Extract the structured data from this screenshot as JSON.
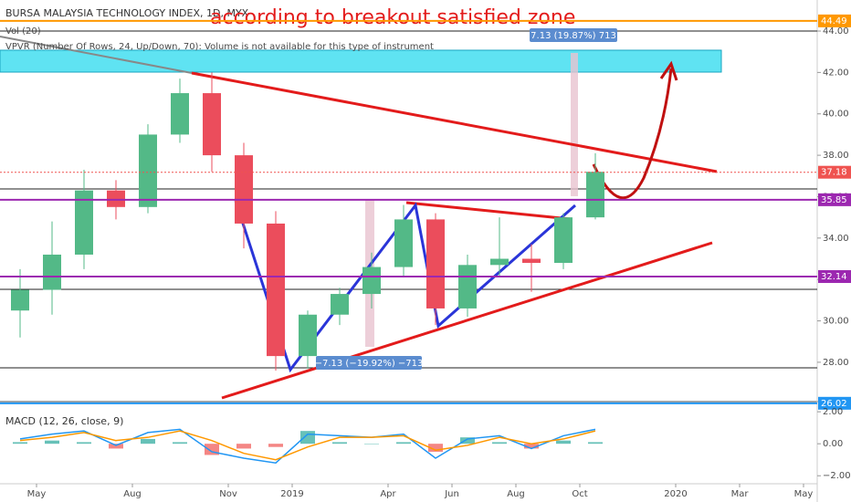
{
  "chart_data": [
    {
      "type": "candlestick",
      "title": "BURSA MALAYSIA TECHNOLOGY INDEX, 1D, MYX",
      "annotation": "according to breakout satisfied zone",
      "indicators": [
        "Vol (20)",
        "VPVR (Number Of Rows, 24, Up/Down, 70): Volume is not available for this type of instrument"
      ],
      "measures": [
        "7.13 (19.87%) 713",
        "−7.13 (−19.92%) −713"
      ],
      "x": [
        "2018-04",
        "2018-05",
        "2018-06",
        "2018-07",
        "2018-08",
        "2018-09",
        "2018-10",
        "2018-11",
        "2018-12",
        "2019-01",
        "2019-02",
        "2019-03",
        "2019-04",
        "2019-05",
        "2019-06",
        "2019-07",
        "2019-08",
        "2019-09",
        "2019-10"
      ],
      "open": [
        30.5,
        31.5,
        33.2,
        36.3,
        35.5,
        39.0,
        41.0,
        38.0,
        34.7,
        28.3,
        30.3,
        31.3,
        32.6,
        34.9,
        30.6,
        32.7,
        33.0,
        32.8,
        35.0
      ],
      "high": [
        32.5,
        34.8,
        37.3,
        36.8,
        39.5,
        41.7,
        42.0,
        38.6,
        35.3,
        30.5,
        31.6,
        33.3,
        35.6,
        35.2,
        33.2,
        35.0,
        33.7,
        35.2,
        38.1
      ],
      "low": [
        29.2,
        30.3,
        32.5,
        34.9,
        35.2,
        38.6,
        37.2,
        33.5,
        27.6,
        27.7,
        29.8,
        30.6,
        32.1,
        29.8,
        30.2,
        32.1,
        31.4,
        32.5,
        34.9
      ],
      "close": [
        31.5,
        33.2,
        36.3,
        35.5,
        39.0,
        41.0,
        38.0,
        34.7,
        28.3,
        30.3,
        31.3,
        32.6,
        34.9,
        30.6,
        32.7,
        33.0,
        32.8,
        35.0,
        37.2
      ],
      "up_color": "#53b987",
      "down_color": "#eb4d5c",
      "ylim": [
        26.1,
        45.5
      ],
      "yticks": [
        {
          "value": 28,
          "label": "28.00"
        },
        {
          "value": 30,
          "label": "30.00"
        },
        {
          "value": 32,
          "label": "32.00"
        },
        {
          "value": 34,
          "label": "34.00"
        },
        {
          "value": 36,
          "label": "36.00"
        },
        {
          "value": 38,
          "label": "38.00"
        },
        {
          "value": 40,
          "label": "40.00"
        },
        {
          "value": 42,
          "label": "42.00"
        },
        {
          "value": 44,
          "label": "44.00"
        }
      ],
      "xticks": [
        {
          "value": "2018-05",
          "label": "May"
        },
        {
          "value": "2018-08",
          "label": "Aug"
        },
        {
          "value": "2018-11",
          "label": "Nov"
        },
        {
          "value": "2019-01",
          "label": "2019"
        },
        {
          "value": "2019-04",
          "label": "Apr"
        },
        {
          "value": "2019-06",
          "label": "Jun"
        },
        {
          "value": "2019-08",
          "label": "Aug"
        },
        {
          "value": "2019-10",
          "label": "Oct"
        },
        {
          "value": "2020-01",
          "label": "2020"
        },
        {
          "value": "2020-03",
          "label": "Mar"
        },
        {
          "value": "2020-05",
          "label": "May"
        }
      ],
      "levels": [
        {
          "value": 44.49,
          "color": "#ff9800"
        },
        {
          "value": 37.18,
          "color": "#ef5350",
          "dashed": true
        },
        {
          "value": 35.85,
          "color": "#9c27b0"
        },
        {
          "value": 32.14,
          "color": "#9c27b0"
        },
        {
          "value": 26.02,
          "color": "#2196f3"
        }
      ]
    },
    {
      "type": "macd",
      "title": "MACD (12, 26, close, 9)",
      "x": [
        "2018-04",
        "2018-05",
        "2018-06",
        "2018-07",
        "2018-08",
        "2018-09",
        "2018-10",
        "2018-11",
        "2018-12",
        "2019-01",
        "2019-02",
        "2019-03",
        "2019-04",
        "2019-05",
        "2019-06",
        "2019-07",
        "2019-08",
        "2019-09",
        "2019-10"
      ],
      "series": [
        {
          "color": "#2196f3",
          "values": [
            0.3,
            0.6,
            0.8,
            -0.1,
            0.7,
            0.9,
            -0.5,
            -0.9,
            -1.2,
            0.6,
            0.5,
            0.4,
            0.6,
            -0.9,
            0.3,
            0.5,
            -0.3,
            0.5,
            0.9
          ]
        },
        {
          "color": "#ff9800",
          "values": [
            0.2,
            0.4,
            0.7,
            0.2,
            0.4,
            0.8,
            0.2,
            -0.6,
            -1.0,
            -0.2,
            0.4,
            0.4,
            0.5,
            -0.4,
            -0.1,
            0.4,
            0,
            0.3,
            0.8
          ]
        }
      ],
      "histogram": [
        0.1,
        0.2,
        0.1,
        -0.3,
        0.3,
        0.1,
        -0.7,
        -0.3,
        -0.2,
        0.8,
        0.1,
        0,
        0.1,
        -0.5,
        0.4,
        0.1,
        -0.3,
        0.2,
        0.1
      ],
      "histogram_colors": [
        "#26a69a",
        "#ef5350"
      ],
      "ylim": [
        -2.5,
        2.35
      ],
      "yticks": [
        {
          "value": 2,
          "label": "2.00"
        },
        {
          "value": 0,
          "label": "0.00"
        },
        {
          "value": -2,
          "label": "−2.00"
        }
      ]
    }
  ]
}
